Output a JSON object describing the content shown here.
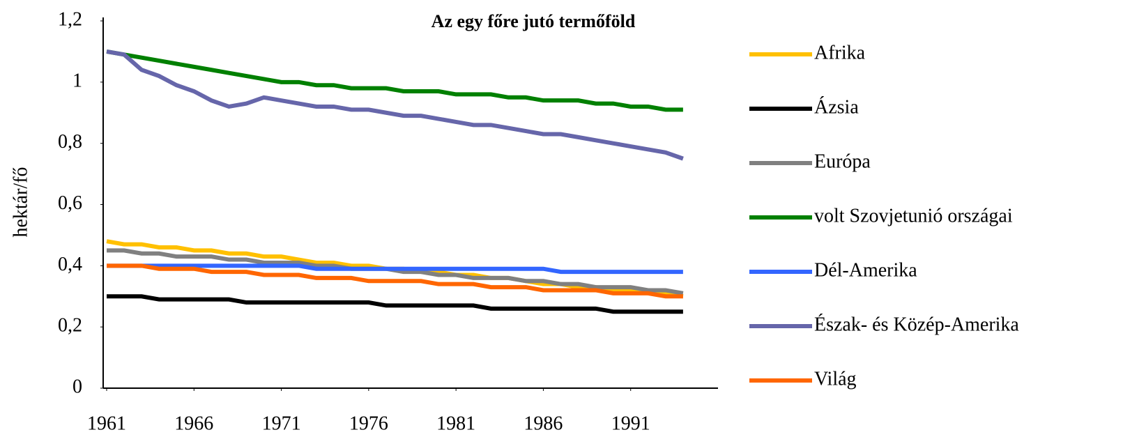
{
  "chart_data": {
    "type": "line",
    "title": "Az egy főre jutó termőföld",
    "y_label": "hektár/fő",
    "x": [
      1961,
      1962,
      1963,
      1964,
      1965,
      1966,
      1967,
      1968,
      1969,
      1970,
      1971,
      1972,
      1973,
      1974,
      1975,
      1976,
      1977,
      1978,
      1979,
      1980,
      1981,
      1982,
      1983,
      1984,
      1985,
      1986,
      1987,
      1988,
      1989,
      1990,
      1991,
      1992,
      1993,
      1994
    ],
    "series": [
      {
        "name": "Afrika",
        "color": "#ffc000",
        "values": [
          0.48,
          0.47,
          0.47,
          0.46,
          0.46,
          0.45,
          0.45,
          0.44,
          0.44,
          0.43,
          0.43,
          0.42,
          0.41,
          0.41,
          0.4,
          0.4,
          0.39,
          0.39,
          0.38,
          0.38,
          0.37,
          0.37,
          0.36,
          0.36,
          0.35,
          0.34,
          0.34,
          0.33,
          0.33,
          0.32,
          0.32,
          0.31,
          0.31,
          0.3
        ]
      },
      {
        "name": "Ázsia",
        "color": "#000000",
        "values": [
          0.3,
          0.3,
          0.3,
          0.29,
          0.29,
          0.29,
          0.29,
          0.29,
          0.28,
          0.28,
          0.28,
          0.28,
          0.28,
          0.28,
          0.28,
          0.28,
          0.27,
          0.27,
          0.27,
          0.27,
          0.27,
          0.27,
          0.26,
          0.26,
          0.26,
          0.26,
          0.26,
          0.26,
          0.26,
          0.25,
          0.25,
          0.25,
          0.25,
          0.25
        ]
      },
      {
        "name": "Európa",
        "color": "#808080",
        "values": [
          0.45,
          0.45,
          0.44,
          0.44,
          0.43,
          0.43,
          0.43,
          0.42,
          0.42,
          0.41,
          0.41,
          0.41,
          0.4,
          0.4,
          0.39,
          0.39,
          0.39,
          0.38,
          0.38,
          0.37,
          0.37,
          0.36,
          0.36,
          0.36,
          0.35,
          0.35,
          0.34,
          0.34,
          0.33,
          0.33,
          0.33,
          0.32,
          0.32,
          0.31
        ]
      },
      {
        "name": "volt Szovjetunió országai",
        "color": "#008000",
        "values": [
          1.1,
          1.09,
          1.08,
          1.07,
          1.06,
          1.05,
          1.04,
          1.03,
          1.02,
          1.01,
          1.0,
          1.0,
          0.99,
          0.99,
          0.98,
          0.98,
          0.98,
          0.97,
          0.97,
          0.97,
          0.96,
          0.96,
          0.96,
          0.95,
          0.95,
          0.94,
          0.94,
          0.94,
          0.93,
          0.93,
          0.92,
          0.92,
          0.91,
          0.91
        ]
      },
      {
        "name": "Dél-Amerika",
        "color": "#3366ff",
        "values": [
          0.4,
          0.4,
          0.4,
          0.4,
          0.4,
          0.4,
          0.4,
          0.4,
          0.4,
          0.4,
          0.4,
          0.4,
          0.39,
          0.39,
          0.39,
          0.39,
          0.39,
          0.39,
          0.39,
          0.39,
          0.39,
          0.39,
          0.39,
          0.39,
          0.39,
          0.39,
          0.38,
          0.38,
          0.38,
          0.38,
          0.38,
          0.38,
          0.38,
          0.38
        ]
      },
      {
        "name": "Észak- és Közép-Amerika",
        "color": "#6666aa",
        "values": [
          1.1,
          1.09,
          1.04,
          1.02,
          0.99,
          0.97,
          0.94,
          0.92,
          0.93,
          0.95,
          0.94,
          0.93,
          0.92,
          0.92,
          0.91,
          0.91,
          0.9,
          0.89,
          0.89,
          0.88,
          0.87,
          0.86,
          0.86,
          0.85,
          0.84,
          0.83,
          0.83,
          0.82,
          0.81,
          0.8,
          0.79,
          0.78,
          0.77,
          0.75
        ]
      },
      {
        "name": "Világ",
        "color": "#ff6600",
        "values": [
          0.4,
          0.4,
          0.4,
          0.39,
          0.39,
          0.39,
          0.38,
          0.38,
          0.38,
          0.37,
          0.37,
          0.37,
          0.36,
          0.36,
          0.36,
          0.35,
          0.35,
          0.35,
          0.35,
          0.34,
          0.34,
          0.34,
          0.33,
          0.33,
          0.33,
          0.32,
          0.32,
          0.32,
          0.32,
          0.31,
          0.31,
          0.31,
          0.3,
          0.3
        ]
      }
    ],
    "xlim": [
      1960.8,
      1996
    ],
    "xticks": [
      1961,
      1966,
      1971,
      1976,
      1981,
      1986,
      1991
    ],
    "ylim": [
      0,
      1.2
    ],
    "yticks": [
      0,
      {
        "value": 0.2,
        "label": "0,2"
      },
      {
        "value": 0.4,
        "label": "0,4"
      },
      {
        "value": 0.6,
        "label": "0,6"
      },
      {
        "value": 0.8,
        "label": "0,8"
      },
      1,
      {
        "value": 1.2,
        "label": "1,2"
      }
    ],
    "legend": "right"
  }
}
